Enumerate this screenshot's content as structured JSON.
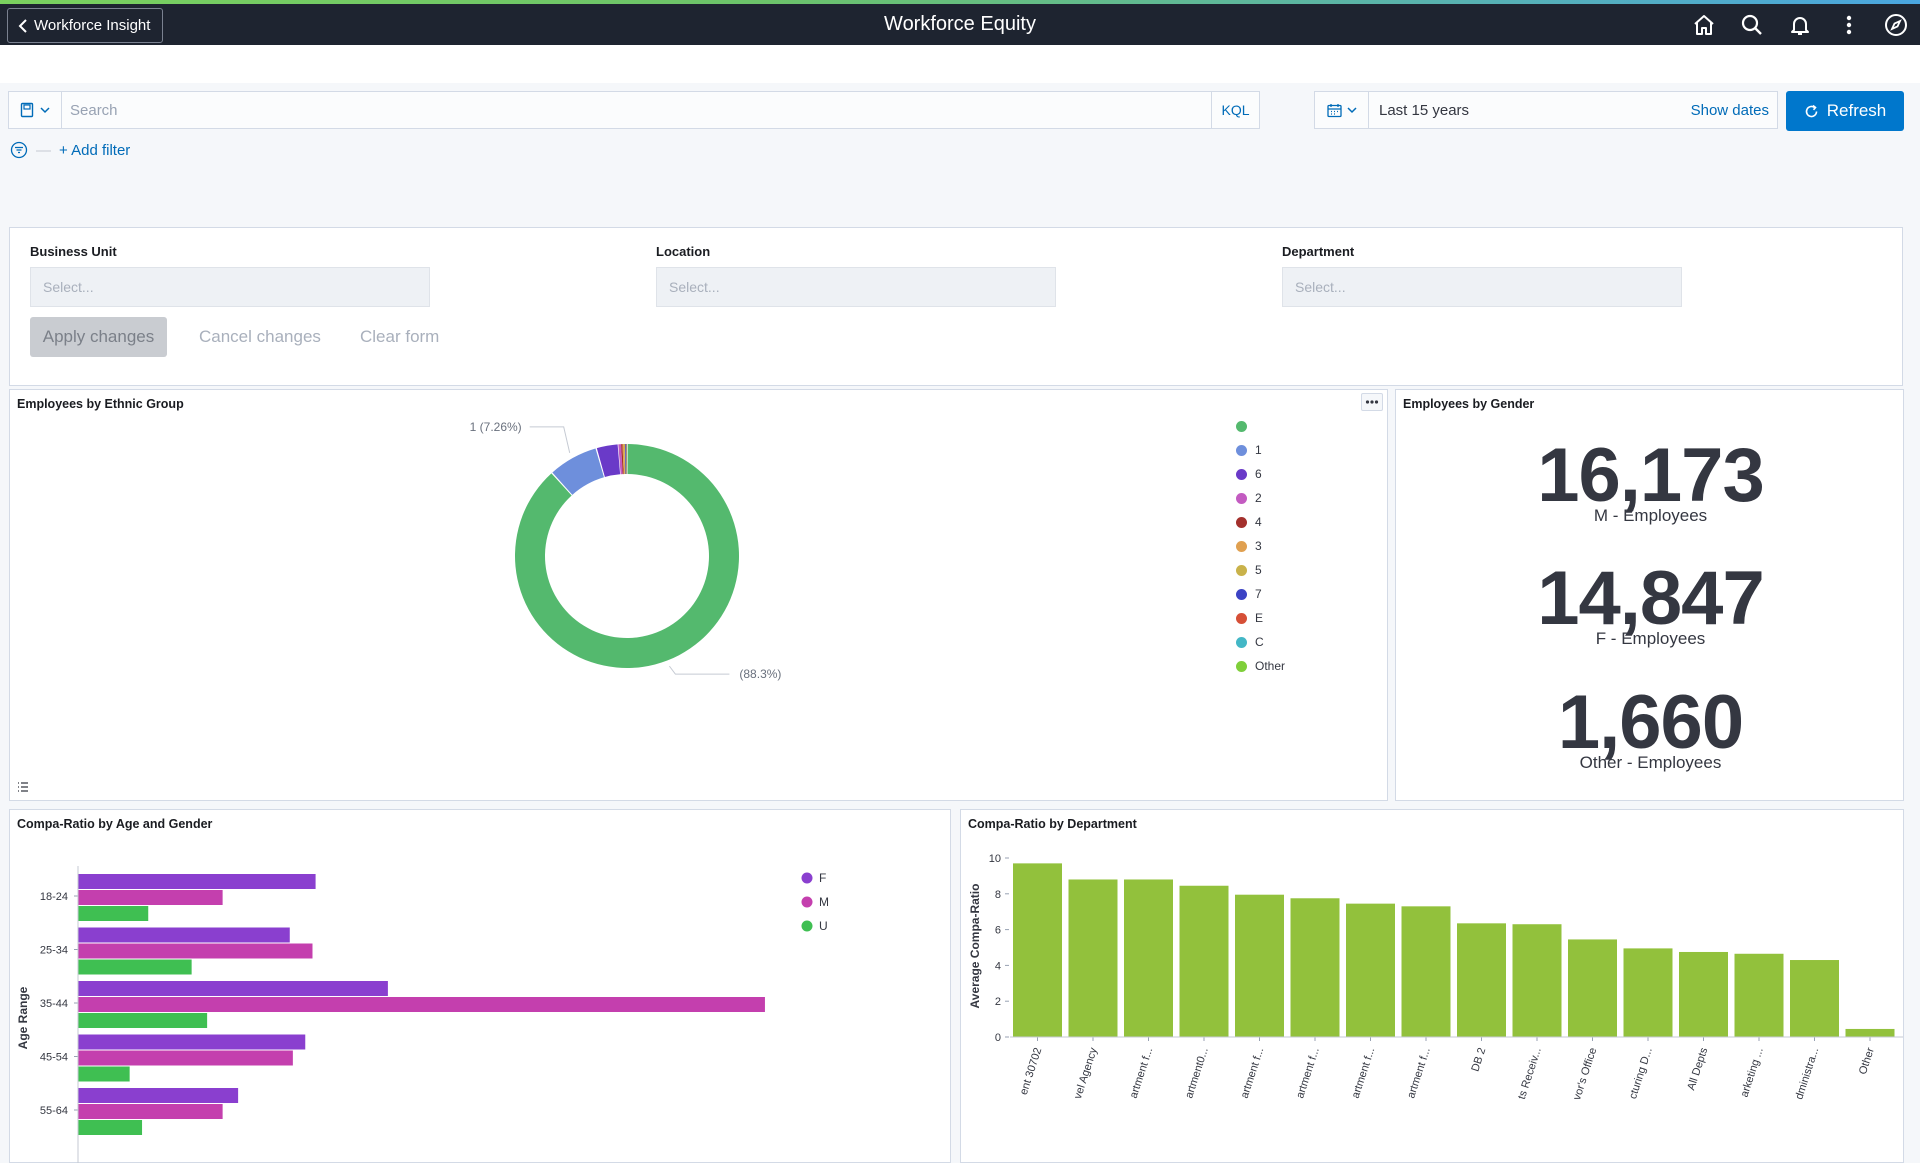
{
  "app": {
    "title": "Workforce Equity",
    "back_label": "Workforce Insight",
    "nav_icons": [
      "home-icon",
      "search-icon",
      "bell-icon",
      "more-vertical-icon",
      "compass-icon"
    ]
  },
  "query": {
    "search_placeholder": "Search",
    "kql_label": "KQL",
    "date_range": "Last 15 years",
    "show_dates": "Show dates",
    "refresh_label": "Refresh",
    "add_filter": "+ Add filter"
  },
  "controls": {
    "fields": [
      {
        "label": "Business Unit",
        "placeholder": "Select..."
      },
      {
        "label": "Location",
        "placeholder": "Select..."
      },
      {
        "label": "Department",
        "placeholder": "Select..."
      }
    ],
    "apply": "Apply changes",
    "cancel": "Cancel changes",
    "clear": "Clear form"
  },
  "panels": {
    "ethnic": {
      "title": "Employees by Ethnic Group"
    },
    "gender": {
      "title": "Employees by Gender",
      "metrics": [
        {
          "value": "16,173",
          "label": "M - Employees"
        },
        {
          "value": "14,847",
          "label": "F - Employees"
        },
        {
          "value": "1,660",
          "label": "Other - Employees"
        }
      ]
    },
    "age": {
      "title": "Compa-Ratio by Age and Gender"
    },
    "dept": {
      "title": "Compa-Ratio by Department"
    }
  },
  "colors": {
    "accent": "#0077cc",
    "topbar": "#1e2430",
    "pie_main": "#54b96e",
    "bar_green": "#92c13c",
    "F": "#8a3fcf",
    "M": "#c43fae",
    "U": "#3fbf52"
  },
  "chart_data": [
    {
      "type": "pie",
      "title": "Employees by Ethnic Group",
      "donut": true,
      "legend_position": "right",
      "slices": [
        {
          "label": "",
          "value": 88.3,
          "color": "#54b96e",
          "data_label": "(88.3%)"
        },
        {
          "label": "1",
          "value": 7.26,
          "color": "#6e8fdc",
          "data_label": "1 (7.26%)"
        },
        {
          "label": "6",
          "value": 3.2,
          "color": "#6a3ac8"
        },
        {
          "label": "2",
          "value": 0.4,
          "color": "#c35bc1"
        },
        {
          "label": "4",
          "value": 0.2,
          "color": "#a3302c"
        },
        {
          "label": "3",
          "value": 0.2,
          "color": "#e0a050"
        },
        {
          "label": "5",
          "value": 0.15,
          "color": "#c9b24a"
        },
        {
          "label": "7",
          "value": 0.12,
          "color": "#3c43c4"
        },
        {
          "label": "E",
          "value": 0.1,
          "color": "#d64f37"
        },
        {
          "label": "C",
          "value": 0.05,
          "color": "#43b7c6"
        },
        {
          "label": "Other",
          "value": 0.02,
          "color": "#7fcf3a"
        }
      ]
    },
    {
      "type": "bar",
      "orientation": "horizontal",
      "title": "Compa-Ratio by Age and Gender",
      "ylabel": "Age Range",
      "categories": [
        "18-24",
        "25-34",
        "35-44",
        "45-54",
        "55-64"
      ],
      "series": [
        {
          "name": "F",
          "color": "#8a3fcf",
          "values": [
            2.3,
            2.05,
            3.0,
            2.2,
            1.55
          ]
        },
        {
          "name": "M",
          "color": "#c43fae",
          "values": [
            1.4,
            2.27,
            6.65,
            2.08,
            1.4
          ]
        },
        {
          "name": "U",
          "color": "#3fbf52",
          "values": [
            0.68,
            1.1,
            1.25,
            0.5,
            0.62
          ]
        }
      ],
      "legend_position": "top-right"
    },
    {
      "type": "bar",
      "title": "Compa-Ratio by Department",
      "ylabel": "Average Compa-Ratio",
      "ylim": [
        0,
        10
      ],
      "yticks": [
        0,
        2,
        4,
        6,
        8,
        10
      ],
      "color": "#92c13c",
      "categories": [
        "ent 30702",
        "vel Agency",
        "artment f...",
        "artment0...",
        "artment f...",
        "artment f...",
        "artment f...",
        "artment f...",
        "DB 2",
        "ts Receiv...",
        "vor's Office",
        "cturing D...",
        "All Depts",
        "arketing ...",
        "dministra...",
        "Other"
      ],
      "values": [
        9.7,
        8.8,
        8.8,
        8.45,
        7.95,
        7.75,
        7.45,
        7.3,
        6.35,
        6.3,
        5.45,
        4.95,
        4.75,
        4.65,
        4.3,
        0.45
      ]
    }
  ]
}
